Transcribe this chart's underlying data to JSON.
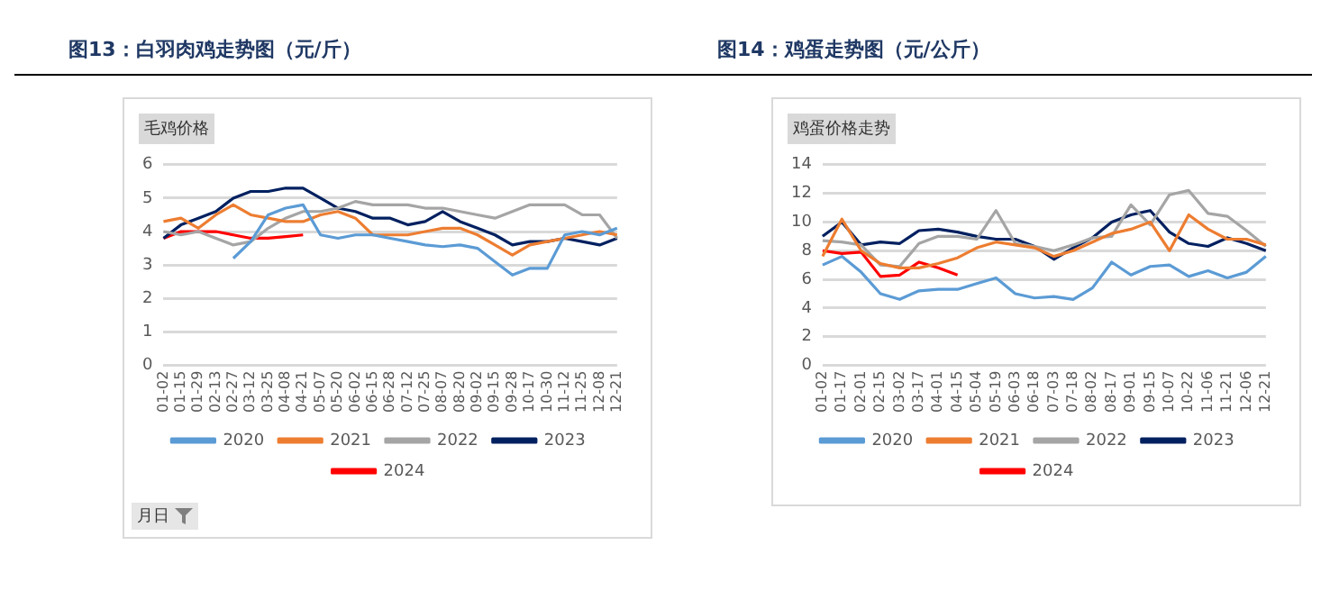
{
  "chart_data": [
    {
      "type": "line",
      "title": "图13：白羽肉鸡走势图（元/斤）",
      "subtitle": "毛鸡价格",
      "xlabel": "月日",
      "categories": [
        "01-02",
        "01-15",
        "01-29",
        "02-13",
        "02-27",
        "03-12",
        "03-25",
        "04-08",
        "04-21",
        "05-07",
        "05-20",
        "06-02",
        "06-15",
        "06-28",
        "07-12",
        "07-25",
        "08-07",
        "08-20",
        "09-02",
        "09-15",
        "09-28",
        "10-17",
        "10-30",
        "11-12",
        "11-25",
        "12-08",
        "12-21"
      ],
      "series": [
        {
          "name": "2020",
          "color": "#5b9bd5",
          "values": [
            null,
            null,
            null,
            null,
            3.2,
            3.7,
            4.5,
            4.7,
            4.8,
            3.9,
            3.8,
            3.9,
            3.9,
            3.8,
            3.7,
            3.6,
            3.55,
            3.6,
            3.5,
            3.1,
            2.7,
            2.9,
            2.9,
            3.9,
            4.0,
            3.9,
            4.1
          ]
        },
        {
          "name": "2021",
          "color": "#ed7d31",
          "values": [
            4.3,
            4.4,
            4.1,
            4.5,
            4.8,
            4.5,
            4.4,
            4.3,
            4.3,
            4.5,
            4.6,
            4.4,
            3.9,
            3.9,
            3.9,
            4.0,
            4.1,
            4.1,
            3.9,
            3.6,
            3.3,
            3.6,
            3.7,
            3.8,
            3.9,
            4.0,
            3.9
          ]
        },
        {
          "name": "2022",
          "color": "#a5a5a5",
          "values": [
            4.0,
            3.9,
            4.0,
            3.8,
            3.6,
            3.7,
            4.1,
            4.4,
            4.6,
            4.6,
            4.7,
            4.9,
            4.8,
            4.8,
            4.8,
            4.7,
            4.7,
            4.6,
            4.5,
            4.4,
            4.6,
            4.8,
            4.8,
            4.8,
            4.5,
            4.5,
            3.8
          ]
        },
        {
          "name": "2023",
          "color": "#002060",
          "values": [
            3.8,
            4.2,
            4.4,
            4.6,
            5.0,
            5.2,
            5.2,
            5.3,
            5.3,
            5.0,
            4.7,
            4.6,
            4.4,
            4.4,
            4.2,
            4.3,
            4.6,
            4.3,
            4.1,
            3.9,
            3.6,
            3.7,
            3.7,
            3.8,
            3.7,
            3.6,
            3.8
          ]
        },
        {
          "name": "2024",
          "color": "#ff0000",
          "values": [
            3.8,
            4.0,
            4.0,
            4.0,
            3.9,
            3.8,
            3.8,
            3.85,
            3.9,
            null,
            null,
            null,
            null,
            null,
            null,
            null,
            null,
            null,
            null,
            null,
            null,
            null,
            null,
            null,
            null,
            null,
            null
          ]
        }
      ],
      "ylim": [
        0,
        6
      ],
      "yticks": [
        0,
        1,
        2,
        3,
        4,
        5,
        6
      ],
      "grid": "y",
      "legend": "bottom",
      "marker": "none"
    },
    {
      "type": "line",
      "title": "图14：鸡蛋走势图（元/公斤）",
      "subtitle": "鸡蛋价格走势",
      "categories": [
        "01-02",
        "01-17",
        "02-01",
        "02-15",
        "03-02",
        "03-17",
        "04-01",
        "04-15",
        "05-04",
        "05-19",
        "06-03",
        "06-18",
        "07-03",
        "07-18",
        "08-02",
        "08-17",
        "09-01",
        "09-15",
        "10-07",
        "10-22",
        "11-06",
        "11-21",
        "12-06",
        "12-21"
      ],
      "series": [
        {
          "name": "2020",
          "color": "#5b9bd5",
          "values": [
            7.0,
            7.6,
            6.5,
            5.0,
            4.6,
            5.2,
            5.3,
            5.3,
            5.7,
            6.1,
            5.0,
            4.7,
            4.8,
            4.6,
            5.4,
            7.2,
            6.3,
            6.9,
            7.0,
            6.2,
            6.6,
            6.1,
            6.5,
            7.6
          ]
        },
        {
          "name": "2021",
          "color": "#ed7d31",
          "values": [
            7.6,
            10.2,
            8.0,
            7.1,
            6.8,
            6.8,
            7.1,
            7.5,
            8.2,
            8.6,
            8.4,
            8.2,
            7.6,
            8.0,
            8.6,
            9.2,
            9.5,
            10.0,
            8.0,
            10.5,
            9.5,
            8.8,
            8.8,
            8.4
          ]
        },
        {
          "name": "2022",
          "color": "#a5a5a5",
          "values": [
            8.7,
            8.6,
            8.4,
            7.0,
            6.9,
            8.5,
            9.0,
            9.0,
            8.8,
            10.8,
            8.5,
            8.3,
            8.0,
            8.4,
            8.9,
            9.0,
            11.2,
            9.8,
            11.9,
            12.2,
            10.6,
            10.4,
            9.4,
            8.3
          ]
        },
        {
          "name": "2023",
          "color": "#002060",
          "values": [
            9.0,
            10.0,
            8.4,
            8.6,
            8.5,
            9.4,
            9.5,
            9.3,
            9.0,
            8.8,
            8.8,
            8.3,
            7.4,
            8.2,
            8.9,
            10.0,
            10.5,
            10.8,
            9.3,
            8.5,
            8.3,
            8.9,
            8.5,
            8.0
          ]
        },
        {
          "name": "2024",
          "color": "#ff0000",
          "values": [
            8.0,
            7.8,
            7.9,
            6.2,
            6.3,
            7.2,
            6.8,
            6.3,
            null,
            null,
            null,
            null,
            null,
            null,
            null,
            null,
            null,
            null,
            null,
            null,
            null,
            null,
            null,
            null
          ]
        }
      ],
      "ylim": [
        0,
        14
      ],
      "yticks": [
        0,
        2,
        4,
        6,
        8,
        10,
        12,
        14
      ],
      "grid": "y",
      "legend": "bottom",
      "marker": "none"
    }
  ]
}
